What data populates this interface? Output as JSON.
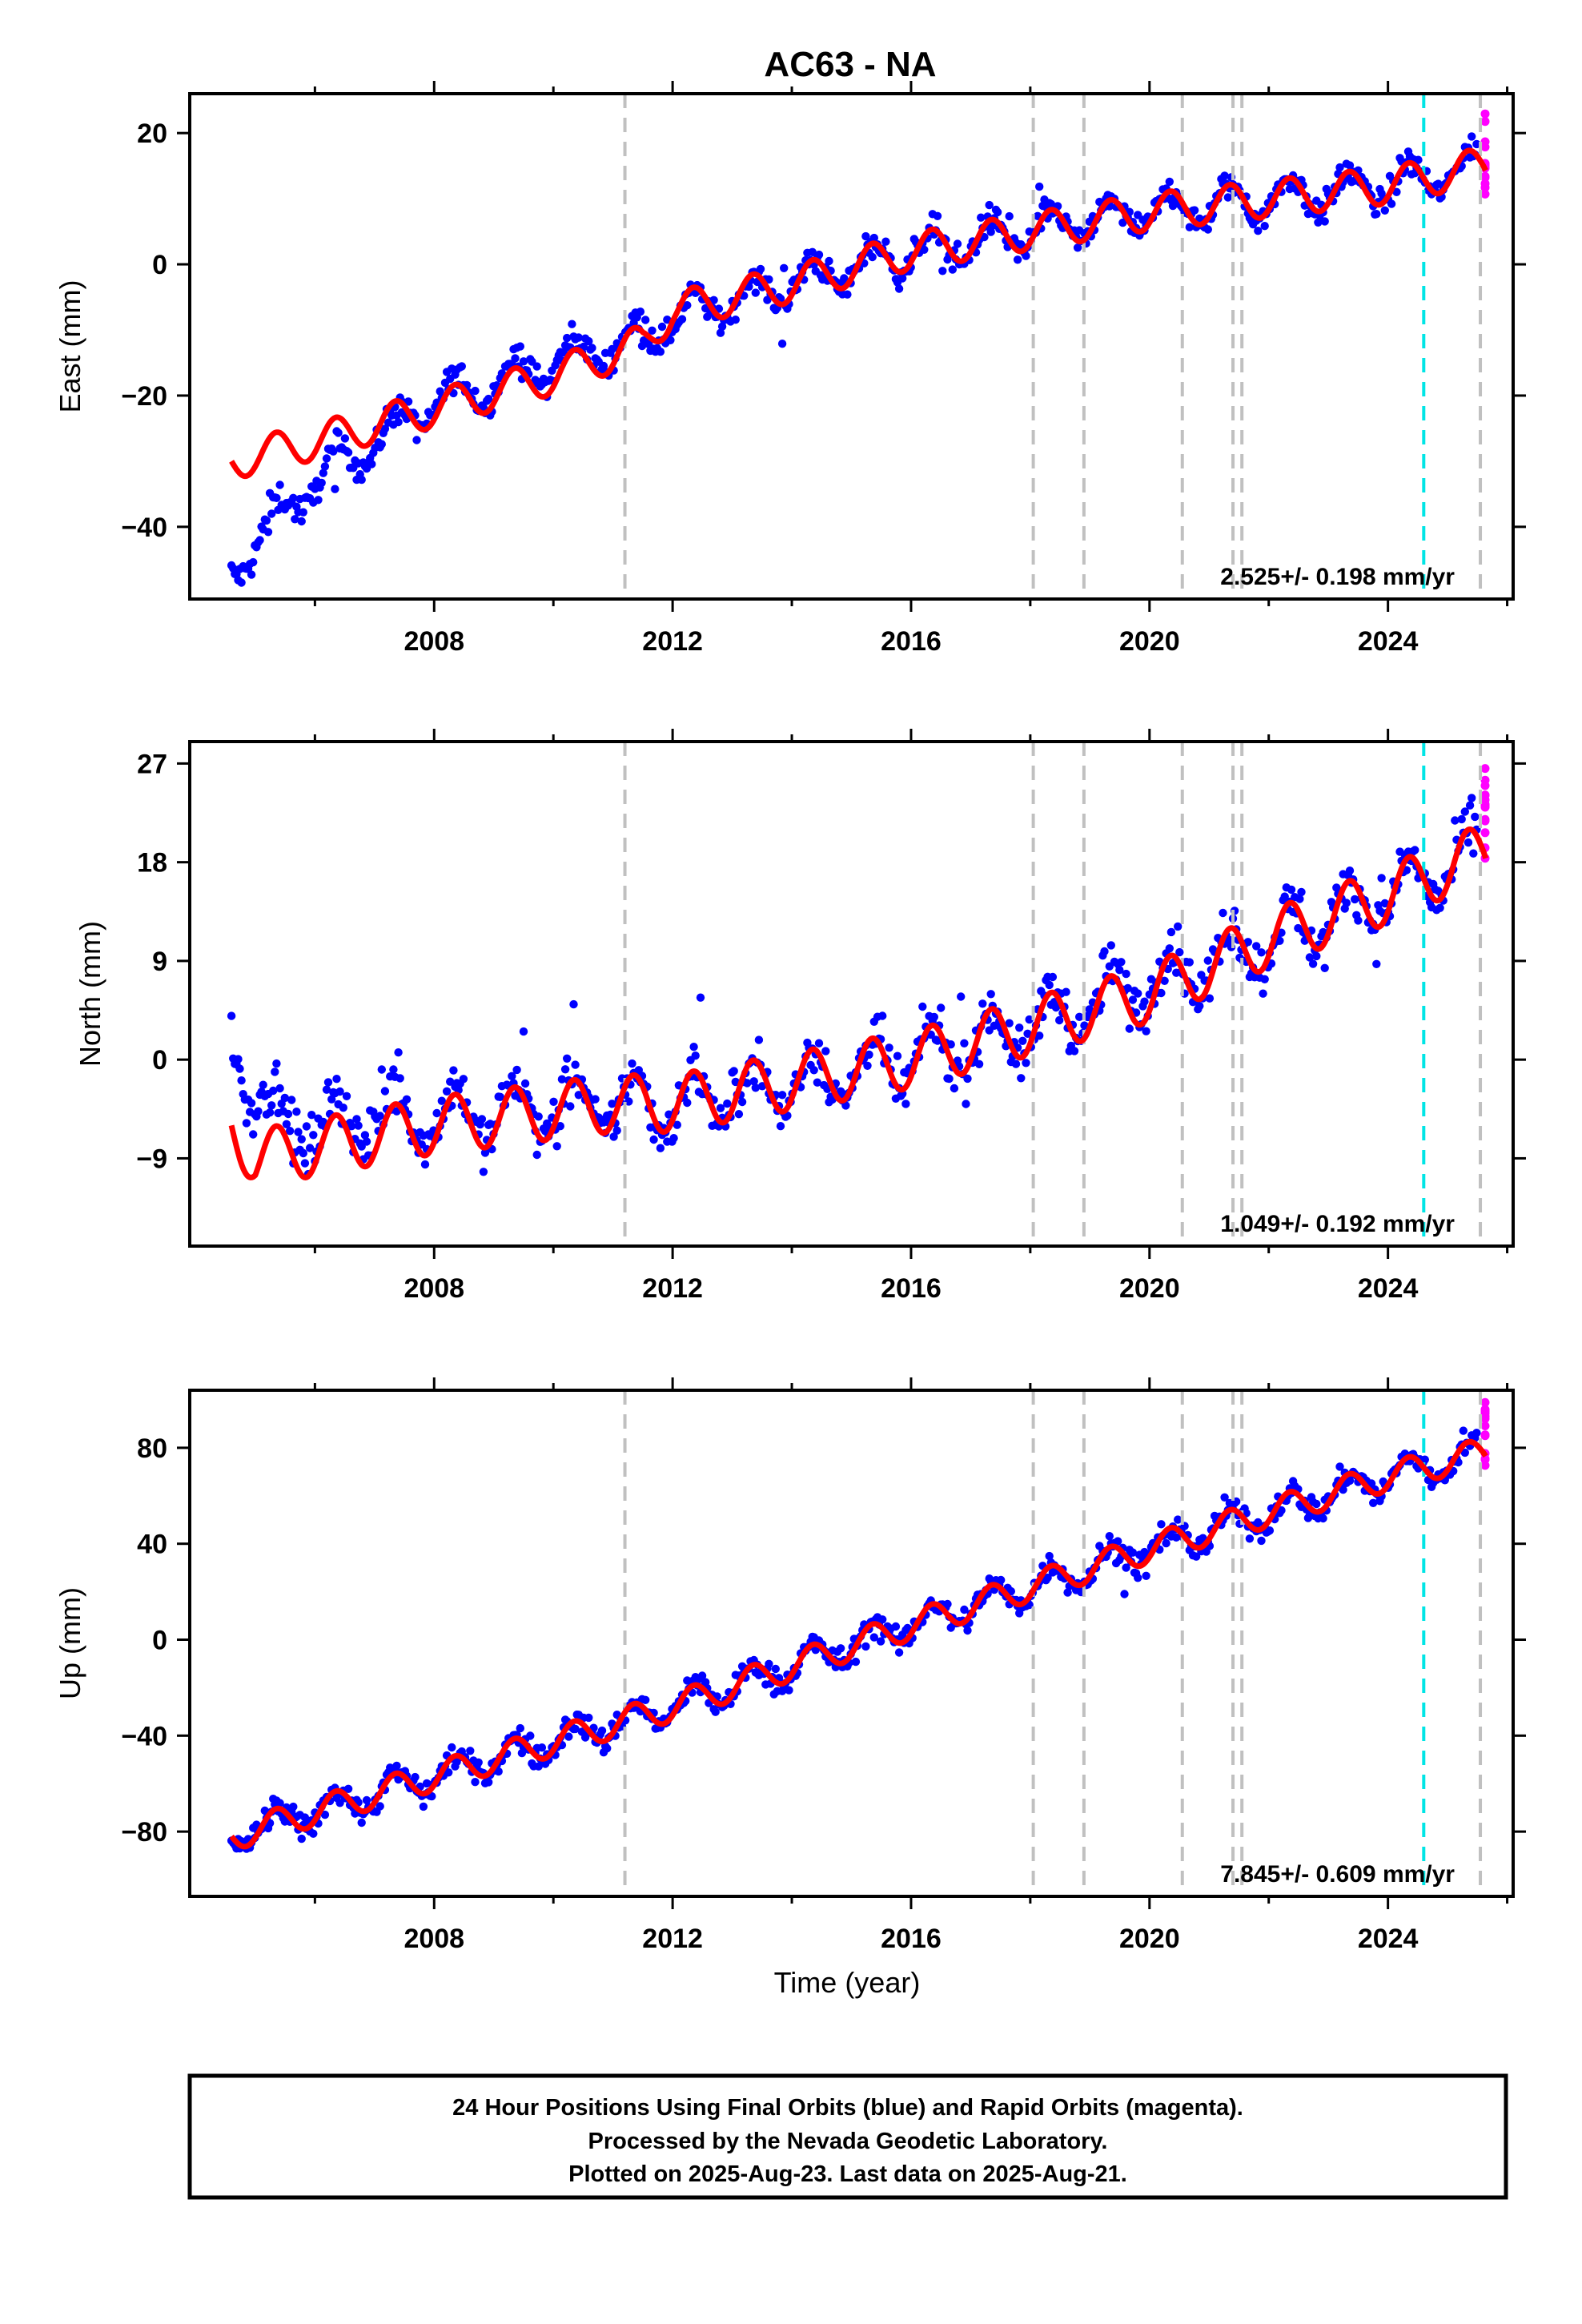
{
  "chart_data": {
    "type": "scatter",
    "title": "AC63 - NA",
    "xlabel": "Time (year)",
    "x_ticks": [
      2008,
      2012,
      2016,
      2020,
      2024
    ],
    "xlim": [
      2003.9,
      2026.1
    ],
    "colors": {
      "final_orbits": "#0000ff",
      "rapid_orbits": "#ff00ff",
      "model": "#ff0000",
      "steps": "#c0c0c0",
      "antenna_change": "#00e5e5"
    },
    "step_epochs": [
      2011.2,
      2018.05,
      2018.9,
      2020.55,
      2021.4,
      2021.55,
      2025.55
    ],
    "antenna_epoch": 2024.6,
    "data_span": [
      2004.6,
      2025.64
    ],
    "rapid_span": [
      2025.5,
      2025.64
    ],
    "panels": [
      {
        "ylabel": "East (mm)",
        "ylim": [
          -51,
          26
        ],
        "y_ticks": [
          -40,
          -20,
          0,
          20
        ],
        "rate_text": "2.525+/- 0.198 mm/yr",
        "anchors": {
          "x": [
            2004.6,
            2005.2,
            2006,
            2008,
            2010,
            2011.5,
            2012,
            2014,
            2016,
            2018,
            2020,
            2022,
            2024,
            2025.6
          ],
          "y": [
            -47,
            -40,
            -33,
            -21,
            -15,
            -11,
            -8,
            -3,
            2,
            5,
            8,
            10,
            12,
            15
          ]
        },
        "model_anchors": {
          "x": [
            2004.6,
            2006,
            2008,
            2010,
            2011.5,
            2012,
            2014,
            2016,
            2018,
            2020,
            2022,
            2024,
            2025.6
          ],
          "y": [
            -30,
            -27,
            -22,
            -17,
            -12,
            -7,
            -3,
            2,
            5,
            8,
            10,
            12,
            15
          ]
        },
        "seasonal_amp": 2.8,
        "scatter": 1.6,
        "rapid_range": [
          10,
          24
        ]
      },
      {
        "ylabel": "North (mm)",
        "ylim": [
          -17,
          29
        ],
        "y_ticks": [
          -9,
          0,
          9,
          18,
          27
        ],
        "rate_text": "1.049+/- 0.192 mm/yr",
        "anchors": {
          "x": [
            2004.6,
            2004.9,
            2005.4,
            2008,
            2011,
            2012,
            2014,
            2016,
            2018,
            2020,
            2022,
            2024,
            2025.6
          ],
          "y": [
            3,
            -2,
            -6,
            -5,
            -4,
            -4,
            -2,
            0,
            3,
            7,
            11,
            15,
            19
          ]
        },
        "model_anchors": {
          "x": [
            2004.6,
            2005,
            2006,
            2008,
            2011,
            2012,
            2014,
            2016,
            2018,
            2020,
            2022,
            2024,
            2025.6
          ],
          "y": [
            -6,
            -9,
            -8,
            -6,
            -4,
            -4,
            -2,
            0,
            3,
            6,
            11,
            15,
            19
          ]
        },
        "seasonal_amp": 2.6,
        "scatter": 1.7,
        "rapid_range": [
          18,
          27
        ]
      },
      {
        "ylabel": "Up (mm)",
        "ylim": [
          -107,
          104
        ],
        "y_ticks": [
          -80,
          -40,
          0,
          40,
          80
        ],
        "rate_text": "7.845+/- 0.609 mm/yr",
        "anchors": {
          "x": [
            2004.6,
            2008,
            2012,
            2016,
            2020,
            2024,
            2025.6
          ],
          "y": [
            -82,
            -57,
            -28,
            6,
            38,
            68,
            78
          ]
        },
        "model_anchors": {
          "x": [
            2004.6,
            2008,
            2012,
            2016,
            2020,
            2024,
            2025.6
          ],
          "y": [
            -82,
            -57,
            -28,
            6,
            38,
            68,
            78
          ]
        },
        "seasonal_amp": 6,
        "scatter": 4,
        "rapid_range": [
          72,
          100
        ]
      }
    ]
  },
  "footer": {
    "line1": "24 Hour Positions Using Final Orbits (blue) and Rapid Orbits (magenta).",
    "line2": "Processed by the Nevada Geodetic Laboratory.",
    "line3": "Plotted on 2025-Aug-23. Last data on 2025-Aug-21."
  }
}
